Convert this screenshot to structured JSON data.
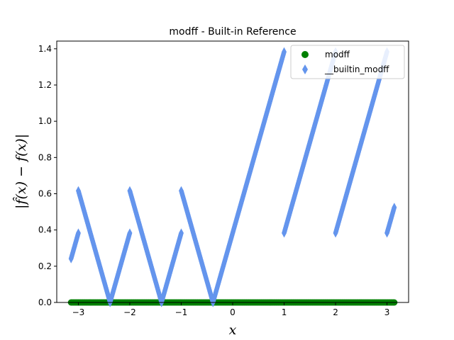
{
  "chart_data": {
    "type": "scatter",
    "title": "modff - Built-in Reference",
    "xlabel": "x",
    "ylabel": "|f̂(x) − f(x)|",
    "xlim": [
      -3.42,
      3.42
    ],
    "ylim": [
      0,
      1.4424
    ],
    "xticks": [
      -3,
      -2,
      -1,
      0,
      1,
      2,
      3
    ],
    "xtick_labels": [
      "−3",
      "−2",
      "−1",
      "0",
      "1",
      "2",
      "3"
    ],
    "yticks": [
      0.0,
      0.2,
      0.4,
      0.6,
      0.8,
      1.0,
      1.2,
      1.4
    ],
    "ytick_labels": [
      "0.0",
      "0.2",
      "0.4",
      "0.6",
      "0.8",
      "1.0",
      "1.2",
      "1.4"
    ],
    "grid": false,
    "legend_position": "top-right",
    "series": [
      {
        "name": "modff",
        "marker": "circle",
        "color": "#008000",
        "segments": [
          [
            [
              -3.1416,
              0.0
            ],
            [
              3.1416,
              0.0
            ]
          ]
        ]
      },
      {
        "name": "__builtin_modff",
        "marker": "thin-diamond",
        "color": "#6495ed",
        "segments": [
          [
            [
              -3.1416,
              0.2416
            ],
            [
              -3.0,
              0.3832
            ]
          ],
          [
            [
              -3.0,
              0.6168
            ],
            [
              -2.3832,
              0.0
            ]
          ],
          [
            [
              -2.3832,
              0.0
            ],
            [
              -2.0,
              0.3832
            ]
          ],
          [
            [
              -2.0,
              0.6168
            ],
            [
              -1.3832,
              0.0
            ]
          ],
          [
            [
              -1.3832,
              0.0
            ],
            [
              -1.0,
              0.3832
            ]
          ],
          [
            [
              -1.0,
              0.6168
            ],
            [
              -0.3832,
              0.0
            ]
          ],
          [
            [
              -0.3832,
              0.0
            ],
            [
              1.0,
              1.3832
            ]
          ],
          [
            [
              1.0,
              0.3832
            ],
            [
              2.0,
              1.3832
            ]
          ],
          [
            [
              2.0,
              0.3832
            ],
            [
              3.0,
              1.3832
            ]
          ],
          [
            [
              3.0,
              0.3832
            ],
            [
              3.1416,
              0.5248
            ]
          ]
        ]
      }
    ]
  }
}
